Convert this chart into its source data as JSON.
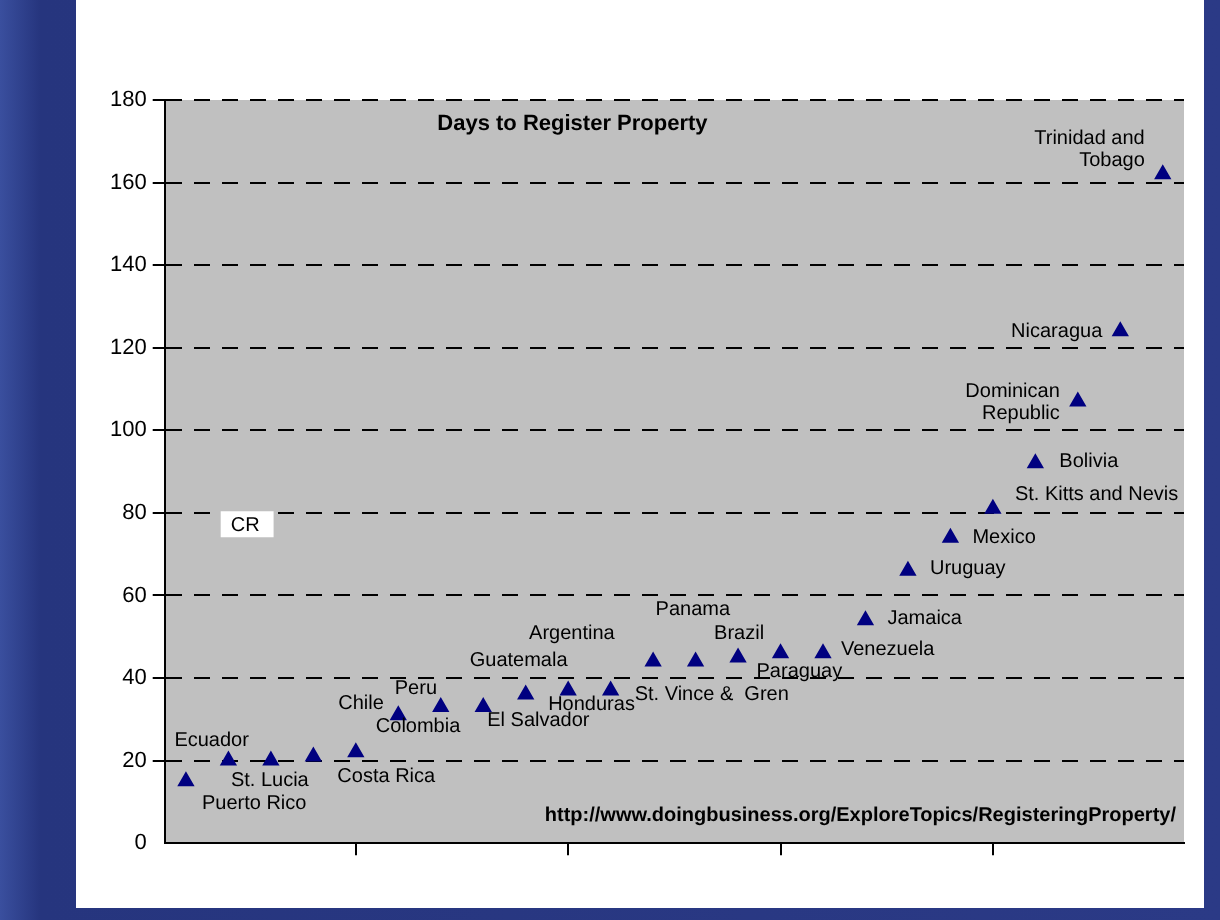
{
  "chart_data": {
    "type": "scatter",
    "title": "Days to Register Property",
    "categories": [
      null,
      null,
      null,
      null,
      null,
      null,
      null,
      null,
      null,
      null,
      null,
      null,
      null,
      null,
      null,
      null,
      null,
      null,
      null,
      null,
      null,
      null,
      null,
      null
    ],
    "values": [
      15,
      20,
      20,
      21,
      22,
      31,
      33,
      33,
      36,
      37,
      37,
      44,
      44,
      45,
      46,
      46,
      54,
      66,
      74,
      81,
      92,
      107,
      124,
      162
    ],
    "color": "#000080",
    "marker": "triangle",
    "grid": "y",
    "ylim": [
      0,
      180
    ],
    "yticks": [
      0,
      20,
      40,
      60,
      80,
      100,
      120,
      140,
      160,
      180
    ],
    "annotations": [
      "Puerto Rico",
      "Ecuador",
      "St. Lucia",
      "Costa Rica",
      "Colombia",
      "Chile",
      "Peru",
      "El Salvador",
      "Guatemala",
      "Honduras",
      "St. Vince &  Gren",
      "Argentina",
      "Panama",
      "Brazil",
      "Paraguay",
      "Venezuela",
      "Jamaica",
      "Uruguay",
      "Mexico",
      "St. Kitts and Nevis",
      "Bolivia",
      "Dominican Republic",
      "Nicaragua",
      "Trinidad and Tobago",
      "CR",
      "http://www.doingbusiness.org/ExploreTopics/RegisteringProperty/"
    ]
  }
}
